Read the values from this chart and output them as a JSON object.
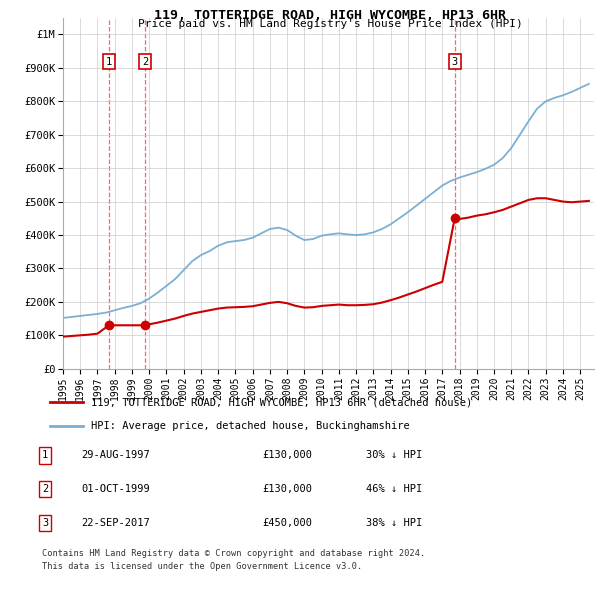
{
  "title": "119, TOTTERIDGE ROAD, HIGH WYCOMBE, HP13 6HR",
  "subtitle": "Price paid vs. HM Land Registry's House Price Index (HPI)",
  "legend_line1": "119, TOTTERIDGE ROAD, HIGH WYCOMBE, HP13 6HR (detached house)",
  "legend_line2": "HPI: Average price, detached house, Buckinghamshire",
  "footnote1": "Contains HM Land Registry data © Crown copyright and database right 2024.",
  "footnote2": "This data is licensed under the Open Government Licence v3.0.",
  "transactions": [
    {
      "num": 1,
      "date_num": 1997.66,
      "price": 130000,
      "label": "29-AUG-1997",
      "pct": "30% ↓ HPI"
    },
    {
      "num": 2,
      "date_num": 1999.75,
      "price": 130000,
      "label": "01-OCT-1999",
      "pct": "46% ↓ HPI"
    },
    {
      "num": 3,
      "date_num": 2017.72,
      "price": 450000,
      "label": "22-SEP-2017",
      "pct": "38% ↓ HPI"
    }
  ],
  "price_color": "#cc0000",
  "hpi_color": "#7bafd4",
  "dashed_color": "#ff6666",
  "bg_color": "#ffffff",
  "grid_color": "#cccccc",
  "ylim": [
    0,
    1050000
  ],
  "xlim_start": 1995.0,
  "xlim_end": 2025.8,
  "yticks": [
    0,
    100000,
    200000,
    300000,
    400000,
    500000,
    600000,
    700000,
    800000,
    900000,
    1000000
  ],
  "ytick_labels": [
    "£0",
    "£100K",
    "£200K",
    "£300K",
    "£400K",
    "£500K",
    "£600K",
    "£700K",
    "£800K",
    "£900K",
    "£1M"
  ],
  "xticks": [
    1995,
    1996,
    1997,
    1998,
    1999,
    2000,
    2001,
    2002,
    2003,
    2004,
    2005,
    2006,
    2007,
    2008,
    2009,
    2010,
    2011,
    2012,
    2013,
    2014,
    2015,
    2016,
    2017,
    2018,
    2019,
    2020,
    2021,
    2022,
    2023,
    2024,
    2025
  ],
  "hpi_points": [
    [
      1995.0,
      152000
    ],
    [
      1995.5,
      155000
    ],
    [
      1996.0,
      158000
    ],
    [
      1996.5,
      161000
    ],
    [
      1997.0,
      164000
    ],
    [
      1997.5,
      168000
    ],
    [
      1998.0,
      175000
    ],
    [
      1998.5,
      182000
    ],
    [
      1999.0,
      188000
    ],
    [
      1999.5,
      196000
    ],
    [
      2000.0,
      210000
    ],
    [
      2000.5,
      228000
    ],
    [
      2001.0,
      248000
    ],
    [
      2001.5,
      268000
    ],
    [
      2002.0,
      295000
    ],
    [
      2002.5,
      322000
    ],
    [
      2003.0,
      340000
    ],
    [
      2003.5,
      352000
    ],
    [
      2004.0,
      368000
    ],
    [
      2004.5,
      378000
    ],
    [
      2005.0,
      382000
    ],
    [
      2005.5,
      385000
    ],
    [
      2006.0,
      392000
    ],
    [
      2006.5,
      405000
    ],
    [
      2007.0,
      418000
    ],
    [
      2007.5,
      422000
    ],
    [
      2008.0,
      415000
    ],
    [
      2008.5,
      398000
    ],
    [
      2009.0,
      385000
    ],
    [
      2009.5,
      388000
    ],
    [
      2010.0,
      398000
    ],
    [
      2010.5,
      402000
    ],
    [
      2011.0,
      405000
    ],
    [
      2011.5,
      402000
    ],
    [
      2012.0,
      400000
    ],
    [
      2012.5,
      402000
    ],
    [
      2013.0,
      408000
    ],
    [
      2013.5,
      418000
    ],
    [
      2014.0,
      432000
    ],
    [
      2014.5,
      450000
    ],
    [
      2015.0,
      468000
    ],
    [
      2015.5,
      488000
    ],
    [
      2016.0,
      508000
    ],
    [
      2016.5,
      528000
    ],
    [
      2017.0,
      548000
    ],
    [
      2017.5,
      562000
    ],
    [
      2018.0,
      572000
    ],
    [
      2018.5,
      580000
    ],
    [
      2019.0,
      588000
    ],
    [
      2019.5,
      598000
    ],
    [
      2020.0,
      610000
    ],
    [
      2020.5,
      630000
    ],
    [
      2021.0,
      660000
    ],
    [
      2021.5,
      700000
    ],
    [
      2022.0,
      740000
    ],
    [
      2022.5,
      778000
    ],
    [
      2023.0,
      800000
    ],
    [
      2023.5,
      810000
    ],
    [
      2024.0,
      818000
    ],
    [
      2024.5,
      828000
    ],
    [
      2025.0,
      840000
    ],
    [
      2025.5,
      852000
    ]
  ],
  "price_points": [
    [
      1995.0,
      96000
    ],
    [
      1995.5,
      98000
    ],
    [
      1996.0,
      100000
    ],
    [
      1996.5,
      102000
    ],
    [
      1997.0,
      105000
    ],
    [
      1997.66,
      130000
    ],
    [
      1998.0,
      130000
    ],
    [
      1998.5,
      130000
    ],
    [
      1999.0,
      130000
    ],
    [
      1999.75,
      130000
    ],
    [
      2000.0,
      133000
    ],
    [
      2000.5,
      138000
    ],
    [
      2001.0,
      144000
    ],
    [
      2001.5,
      150000
    ],
    [
      2002.0,
      158000
    ],
    [
      2002.5,
      165000
    ],
    [
      2003.0,
      170000
    ],
    [
      2003.5,
      175000
    ],
    [
      2004.0,
      180000
    ],
    [
      2004.5,
      183000
    ],
    [
      2005.0,
      184000
    ],
    [
      2005.5,
      185000
    ],
    [
      2006.0,
      187000
    ],
    [
      2006.5,
      192000
    ],
    [
      2007.0,
      197000
    ],
    [
      2007.5,
      200000
    ],
    [
      2008.0,
      196000
    ],
    [
      2008.5,
      188000
    ],
    [
      2009.0,
      183000
    ],
    [
      2009.5,
      184000
    ],
    [
      2010.0,
      188000
    ],
    [
      2010.5,
      190000
    ],
    [
      2011.0,
      192000
    ],
    [
      2011.5,
      190000
    ],
    [
      2012.0,
      190000
    ],
    [
      2012.5,
      191000
    ],
    [
      2013.0,
      193000
    ],
    [
      2013.5,
      198000
    ],
    [
      2014.0,
      205000
    ],
    [
      2014.5,
      213000
    ],
    [
      2015.0,
      222000
    ],
    [
      2015.5,
      231000
    ],
    [
      2016.0,
      241000
    ],
    [
      2016.5,
      251000
    ],
    [
      2017.0,
      260000
    ],
    [
      2017.72,
      450000
    ],
    [
      2018.0,
      448000
    ],
    [
      2018.5,
      452000
    ],
    [
      2019.0,
      458000
    ],
    [
      2019.5,
      462000
    ],
    [
      2020.0,
      468000
    ],
    [
      2020.5,
      475000
    ],
    [
      2021.0,
      485000
    ],
    [
      2021.5,
      495000
    ],
    [
      2022.0,
      505000
    ],
    [
      2022.5,
      510000
    ],
    [
      2023.0,
      510000
    ],
    [
      2023.5,
      505000
    ],
    [
      2024.0,
      500000
    ],
    [
      2024.5,
      498000
    ],
    [
      2025.0,
      500000
    ],
    [
      2025.5,
      502000
    ]
  ]
}
